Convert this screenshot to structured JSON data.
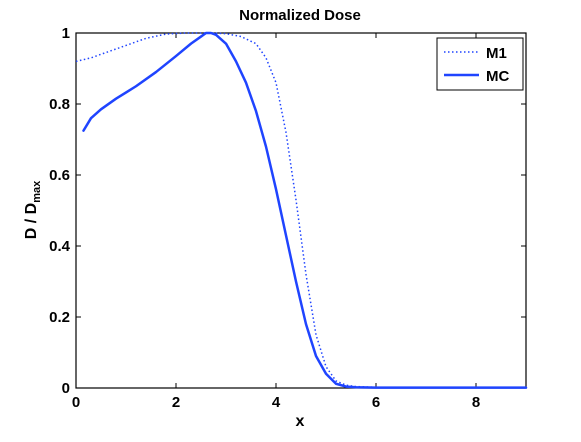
{
  "chart_data": {
    "type": "line",
    "title": "Normalized Dose",
    "xlabel": "x",
    "ylabel": {
      "main": "D / D",
      "subscript": "max"
    },
    "xlim": [
      0,
      9
    ],
    "ylim": [
      0,
      1
    ],
    "xticks": [
      0,
      2,
      4,
      6,
      8
    ],
    "yticks": [
      0,
      0.2,
      0.4,
      0.6,
      0.8,
      1
    ],
    "xtick_labels": [
      "0",
      "2",
      "4",
      "6",
      "8"
    ],
    "ytick_labels": [
      "0",
      "0.2",
      "0.4",
      "0.6",
      "0.8",
      "1"
    ],
    "grid": false,
    "legend_position": "top-right",
    "colors": {
      "line": "#1f44ff",
      "axes": "#000000",
      "background": "#ffffff"
    },
    "series": [
      {
        "name": "M1",
        "style": "dotted",
        "x": [
          0.0,
          0.3,
          0.6,
          1.0,
          1.4,
          1.8,
          2.2,
          2.5,
          2.7,
          3.0,
          3.3,
          3.6,
          3.8,
          4.0,
          4.2,
          4.4,
          4.6,
          4.8,
          5.0,
          5.2,
          5.4,
          5.6,
          6.0,
          7.0,
          8.0,
          9.0
        ],
        "y": [
          0.92,
          0.93,
          0.945,
          0.965,
          0.985,
          0.997,
          1.0,
          1.0,
          1.0,
          0.998,
          0.99,
          0.97,
          0.93,
          0.86,
          0.72,
          0.53,
          0.32,
          0.15,
          0.06,
          0.02,
          0.008,
          0.004,
          0.002,
          0.002,
          0.002,
          0.002
        ]
      },
      {
        "name": "MC",
        "style": "solid",
        "x": [
          0.15,
          0.3,
          0.5,
          0.8,
          1.2,
          1.6,
          2.0,
          2.3,
          2.5,
          2.6,
          2.7,
          2.8,
          3.0,
          3.2,
          3.4,
          3.6,
          3.8,
          4.0,
          4.2,
          4.4,
          4.6,
          4.8,
          5.0,
          5.2,
          5.4,
          5.6,
          6.0,
          7.0,
          8.0,
          9.0
        ],
        "y": [
          0.725,
          0.76,
          0.785,
          0.815,
          0.85,
          0.89,
          0.935,
          0.97,
          0.99,
          1.0,
          1.0,
          0.995,
          0.97,
          0.92,
          0.86,
          0.78,
          0.68,
          0.56,
          0.43,
          0.3,
          0.18,
          0.09,
          0.04,
          0.012,
          0.004,
          0.002,
          0.001,
          0.001,
          0.001,
          0.001
        ]
      }
    ]
  }
}
